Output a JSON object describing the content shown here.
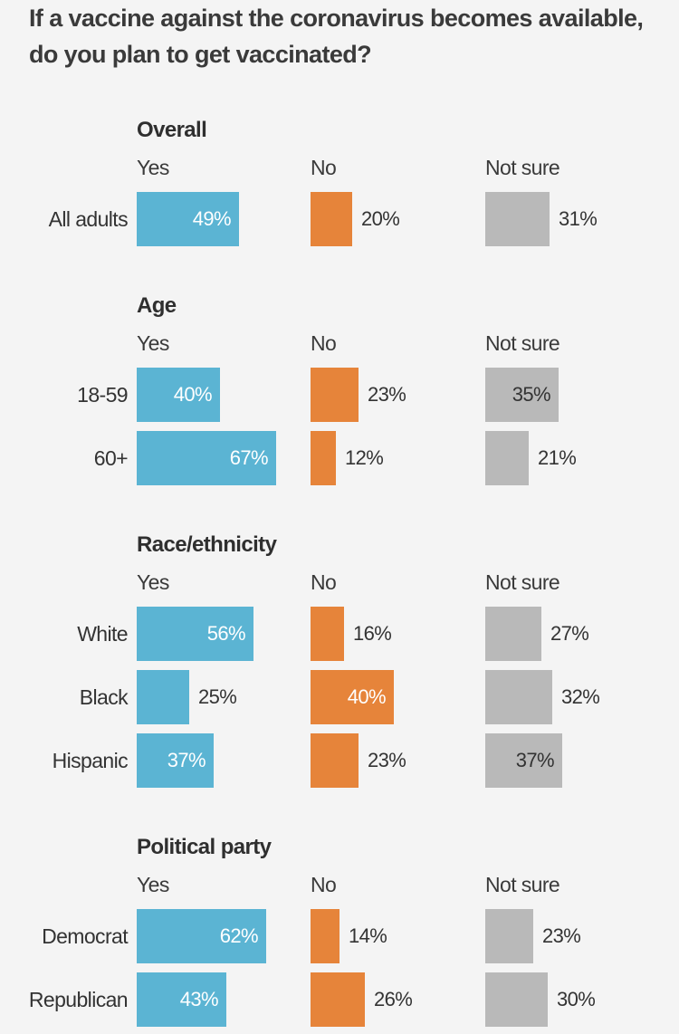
{
  "title": "If a vaccine against the coronavirus becomes available, do you plan to get vaccinated?",
  "colors": {
    "yes": "#5bb4d3",
    "no": "#e6843a",
    "not_sure": "#b9b9b9",
    "background": "#f4f4f4"
  },
  "chart_data": {
    "type": "bar",
    "orientation": "horizontal",
    "series": [
      {
        "name": "Yes",
        "color": "#5bb4d3"
      },
      {
        "name": "No",
        "color": "#e6843a"
      },
      {
        "name": "Not sure",
        "color": "#b9b9b9"
      }
    ],
    "groups": [
      {
        "title": "Overall",
        "rows": [
          {
            "label": "All adults",
            "values": [
              49,
              20,
              31
            ],
            "labels": [
              "49%",
              "20%",
              "31%"
            ]
          }
        ]
      },
      {
        "title": "Age",
        "rows": [
          {
            "label": "18-59",
            "values": [
              40,
              23,
              35
            ],
            "labels": [
              "40%",
              "23%",
              "35%"
            ]
          },
          {
            "label": "60+",
            "values": [
              67,
              12,
              21
            ],
            "labels": [
              "67%",
              "12%",
              "21%"
            ]
          }
        ]
      },
      {
        "title": "Race/ethnicity",
        "rows": [
          {
            "label": "White",
            "values": [
              56,
              16,
              27
            ],
            "labels": [
              "56%",
              "16%",
              "27%"
            ]
          },
          {
            "label": "Black",
            "values": [
              25,
              40,
              32
            ],
            "labels": [
              "25%",
              "40%",
              "32%"
            ]
          },
          {
            "label": "Hispanic",
            "values": [
              37,
              23,
              37
            ],
            "labels": [
              "37%",
              "23%",
              "37%"
            ]
          }
        ]
      },
      {
        "title": "Political party",
        "rows": [
          {
            "label": "Democrat",
            "values": [
              62,
              14,
              23
            ],
            "labels": [
              "62%",
              "14%",
              "23%"
            ]
          },
          {
            "label": "Republican",
            "values": [
              43,
              26,
              30
            ],
            "labels": [
              "43%",
              "26%",
              "30%"
            ]
          }
        ]
      }
    ]
  }
}
